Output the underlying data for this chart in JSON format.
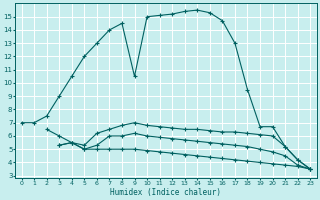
{
  "xlabel": "Humidex (Indice chaleur)",
  "bg_color": "#c8eeee",
  "grid_color": "#ffffff",
  "line_color": "#006060",
  "xlim": [
    -0.5,
    23.5
  ],
  "ylim": [
    2.8,
    16.0
  ],
  "yticks": [
    3,
    4,
    5,
    6,
    7,
    8,
    9,
    10,
    11,
    12,
    13,
    14,
    15
  ],
  "xticks": [
    0,
    1,
    2,
    3,
    4,
    5,
    6,
    7,
    8,
    9,
    10,
    11,
    12,
    13,
    14,
    15,
    16,
    17,
    18,
    19,
    20,
    21,
    22,
    23
  ],
  "line1_x": [
    0,
    1,
    2,
    3,
    4,
    5,
    6,
    7,
    8,
    9,
    10,
    11,
    12,
    13,
    14,
    15,
    16,
    17,
    18,
    19,
    20,
    21,
    22,
    23
  ],
  "line1_y": [
    7.0,
    7.0,
    7.5,
    9.0,
    10.5,
    12.0,
    13.0,
    14.0,
    14.5,
    10.5,
    15.0,
    15.1,
    15.2,
    15.4,
    15.5,
    15.3,
    14.7,
    13.0,
    9.5,
    6.7,
    6.7,
    5.2,
    4.2,
    3.5
  ],
  "line2_x": [
    2,
    3,
    4,
    5,
    6,
    7,
    8,
    9,
    10,
    11,
    12,
    13,
    14,
    15,
    16,
    17,
    18,
    19,
    20,
    21,
    22,
    23
  ],
  "line2_y": [
    6.5,
    6.0,
    5.5,
    5.3,
    6.2,
    6.5,
    6.8,
    7.0,
    6.8,
    6.7,
    6.6,
    6.5,
    6.5,
    6.4,
    6.3,
    6.3,
    6.2,
    6.1,
    6.0,
    5.2,
    4.2,
    3.5
  ],
  "line3_x": [
    3,
    4,
    5,
    6,
    7,
    8,
    9,
    10,
    11,
    12,
    13,
    14,
    15,
    16,
    17,
    18,
    19,
    20,
    21,
    22,
    23
  ],
  "line3_y": [
    5.3,
    5.5,
    5.0,
    5.3,
    6.0,
    6.0,
    6.2,
    6.0,
    5.9,
    5.8,
    5.7,
    5.6,
    5.5,
    5.4,
    5.3,
    5.2,
    5.0,
    4.8,
    4.5,
    3.8,
    3.5
  ],
  "line4_x": [
    3,
    4,
    5,
    6,
    7,
    8,
    9,
    10,
    11,
    12,
    13,
    14,
    15,
    16,
    17,
    18,
    19,
    20,
    21,
    22,
    23
  ],
  "line4_y": [
    5.3,
    5.5,
    5.0,
    5.0,
    5.0,
    5.0,
    5.0,
    4.9,
    4.8,
    4.7,
    4.6,
    4.5,
    4.4,
    4.3,
    4.2,
    4.1,
    4.0,
    3.9,
    3.8,
    3.7,
    3.5
  ]
}
